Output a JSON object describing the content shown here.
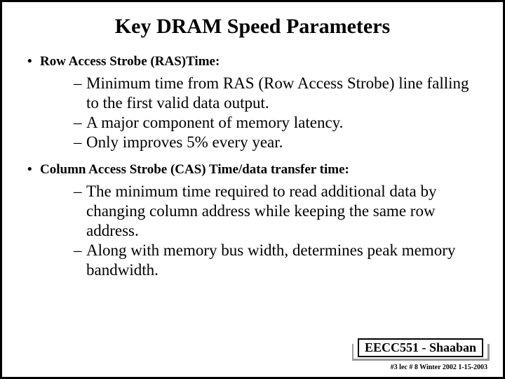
{
  "title": "Key DRAM Speed Parameters",
  "sections": [
    {
      "header": "Row Access Strobe (RAS)Time:",
      "items": [
        "Minimum time from RAS (Row Access Strobe) line falling to the first valid data output.",
        "A major component of memory latency.",
        "Only improves 5% every year."
      ]
    },
    {
      "header": "Column Access Strobe (CAS) Time/data transfer time:",
      "items": [
        "The minimum time required to read additional data by changing column address while keeping the same row address.",
        " Along with memory bus width, determines peak memory bandwidth."
      ]
    }
  ],
  "footer": {
    "main": "EECC551 - Shaaban",
    "sub": "#3  lec # 8   Winter 2002  1-15-2003"
  },
  "style": {
    "title_fontsize": 30,
    "header_fontsize": 19,
    "subitem_fontsize": 23,
    "footer_main_fontsize": 18,
    "footer_sub_fontsize": 10,
    "text_color": "#000000",
    "background_color": "#ffffff",
    "border_color": "#000000",
    "shadow_color": "#999999"
  }
}
